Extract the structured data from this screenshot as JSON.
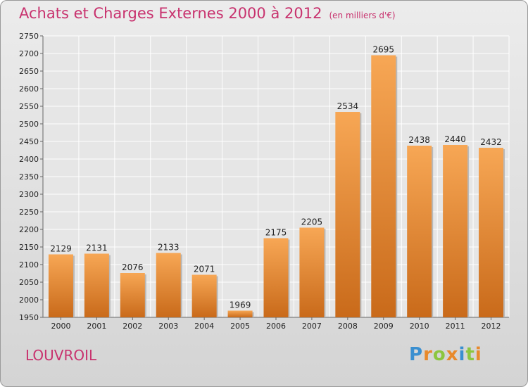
{
  "title": "Achats et Charges Externes 2000 à 2012",
  "subtitle": "(en milliers d'€)",
  "location": "LOUVROIL",
  "logo": {
    "text": "Proxiti",
    "letters": [
      {
        "ch": "P",
        "color": "#3a8fd0"
      },
      {
        "ch": "r",
        "color": "#e8892b"
      },
      {
        "ch": "o",
        "color": "#8cc63f"
      },
      {
        "ch": "x",
        "color": "#e8892b"
      },
      {
        "ch": "i",
        "color": "#3a8fd0"
      },
      {
        "ch": "t",
        "color": "#8cc63f"
      },
      {
        "ch": "i",
        "color": "#e8892b"
      }
    ]
  },
  "colors": {
    "title": "#c8326e",
    "bar_light": "#f7a755",
    "bar_dark": "#c96a1a"
  },
  "chart_data": {
    "type": "bar",
    "categories": [
      "2000",
      "2001",
      "2002",
      "2003",
      "2004",
      "2005",
      "2006",
      "2007",
      "2008",
      "2009",
      "2010",
      "2011",
      "2012"
    ],
    "values": [
      2129,
      2131,
      2076,
      2133,
      2071,
      1969,
      2175,
      2205,
      2534,
      2695,
      2438,
      2440,
      2432
    ],
    "ylim": [
      1950,
      2750
    ],
    "yticks": [
      1950,
      2000,
      2050,
      2100,
      2150,
      2200,
      2250,
      2300,
      2350,
      2400,
      2450,
      2500,
      2550,
      2600,
      2650,
      2700,
      2750
    ],
    "grid": true
  }
}
